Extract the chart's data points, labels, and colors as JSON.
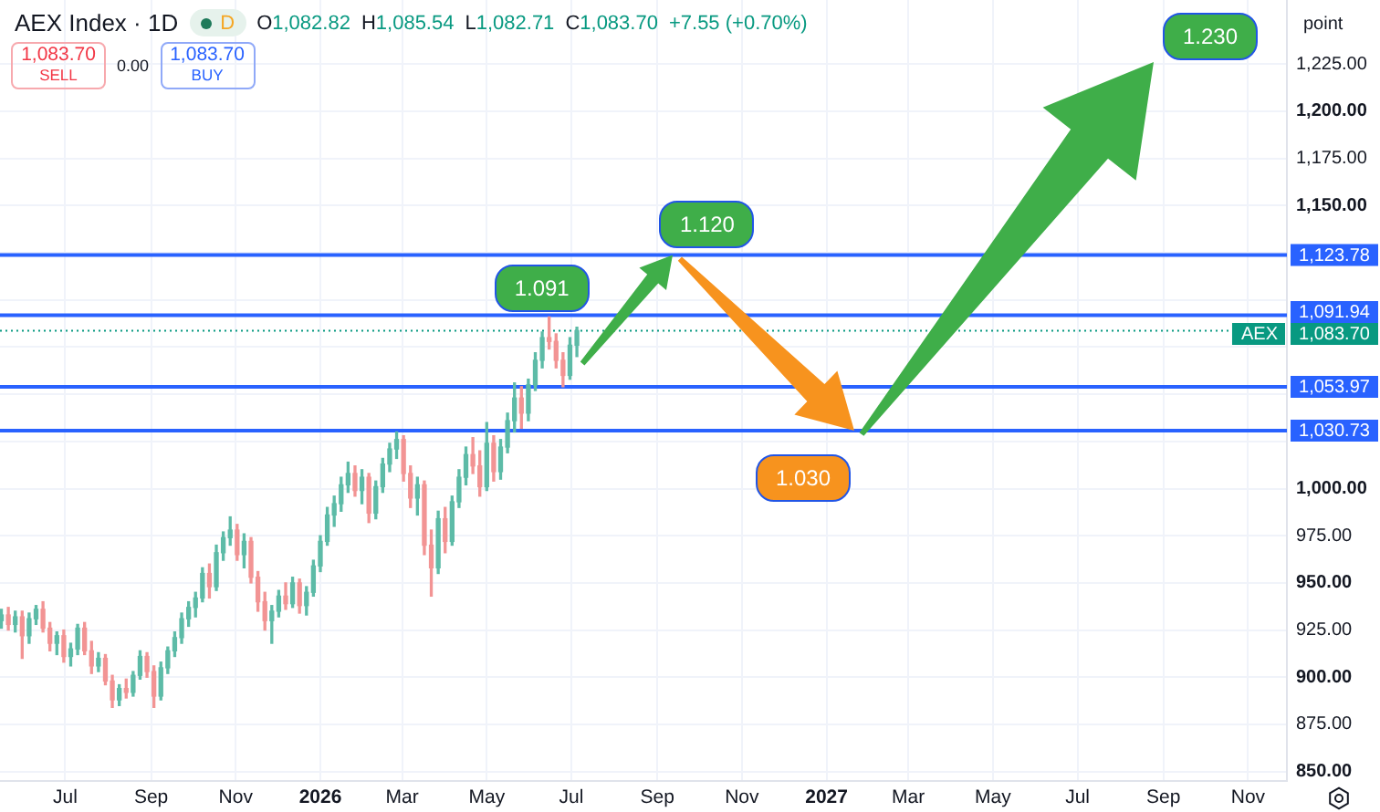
{
  "chart_data": {
    "type": "candlestick",
    "title": "AEX Index · 1D",
    "ylabel": "point",
    "x": [
      "2025-05-16",
      "2025-05-21",
      "2025-05-26",
      "2025-05-31",
      "2025-06-05",
      "2025-06-10",
      "2025-06-15",
      "2025-06-20",
      "2025-06-25",
      "2025-06-30",
      "2025-07-05",
      "2025-07-10",
      "2025-07-15",
      "2025-07-20",
      "2025-07-25",
      "2025-07-30",
      "2025-08-04",
      "2025-08-09",
      "2025-08-14",
      "2025-08-19",
      "2025-08-24",
      "2025-08-29",
      "2025-09-03",
      "2025-09-08",
      "2025-09-13",
      "2025-09-18",
      "2025-09-23",
      "2025-09-28",
      "2025-10-03",
      "2025-10-08",
      "2025-10-13",
      "2025-10-18",
      "2025-10-23",
      "2025-10-28",
      "2025-11-02",
      "2025-11-07",
      "2025-11-12",
      "2025-11-17",
      "2025-11-22",
      "2025-11-27",
      "2025-12-02",
      "2025-12-07",
      "2025-12-12",
      "2025-12-17",
      "2025-12-22",
      "2025-12-27",
      "2026-01-01",
      "2026-01-06",
      "2026-01-11",
      "2026-01-16",
      "2026-01-21",
      "2026-01-26",
      "2026-01-31",
      "2026-02-05",
      "2026-02-10",
      "2026-02-15",
      "2026-02-20",
      "2026-02-25",
      "2026-03-02",
      "2026-03-07",
      "2026-03-12",
      "2026-03-17",
      "2026-03-22",
      "2026-03-27",
      "2026-04-01",
      "2026-04-06",
      "2026-04-11",
      "2026-04-16",
      "2026-04-21",
      "2026-04-26",
      "2026-05-01",
      "2026-05-06",
      "2026-05-11",
      "2026-05-16",
      "2026-05-21",
      "2026-05-26",
      "2026-05-31",
      "2026-06-05",
      "2026-06-10",
      "2026-06-15",
      "2026-06-20",
      "2026-06-25",
      "2026-06-30",
      "2026-07-05"
    ],
    "ohlc": [
      [
        930,
        936,
        926,
        933
      ],
      [
        933,
        937,
        925,
        928
      ],
      [
        928,
        935,
        924,
        932
      ],
      [
        932,
        935,
        910,
        922
      ],
      [
        922,
        934,
        918,
        931
      ],
      [
        931,
        938,
        928,
        936
      ],
      [
        936,
        940,
        924,
        926
      ],
      [
        926,
        929,
        914,
        918
      ],
      [
        918,
        924,
        912,
        922
      ],
      [
        922,
        925,
        908,
        911
      ],
      [
        911,
        918,
        906,
        915
      ],
      [
        915,
        928,
        912,
        926
      ],
      [
        926,
        929,
        912,
        914
      ],
      [
        914,
        919,
        902,
        906
      ],
      [
        906,
        913,
        903,
        910
      ],
      [
        910,
        912,
        896,
        898
      ],
      [
        898,
        901,
        884,
        888
      ],
      [
        888,
        896,
        885,
        894
      ],
      [
        894,
        899,
        889,
        892
      ],
      [
        892,
        903,
        890,
        901
      ],
      [
        901,
        914,
        899,
        911
      ],
      [
        911,
        913,
        900,
        903
      ],
      [
        903,
        906,
        884,
        890
      ],
      [
        890,
        908,
        888,
        905
      ],
      [
        905,
        916,
        902,
        914
      ],
      [
        914,
        924,
        911,
        921
      ],
      [
        921,
        934,
        918,
        931
      ],
      [
        931,
        940,
        927,
        937
      ],
      [
        937,
        945,
        932,
        942
      ],
      [
        942,
        958,
        940,
        955
      ],
      [
        955,
        960,
        942,
        948
      ],
      [
        948,
        970,
        946,
        966
      ],
      [
        966,
        977,
        962,
        974
      ],
      [
        974,
        985,
        970,
        978
      ],
      [
        978,
        981,
        962,
        965
      ],
      [
        965,
        976,
        958,
        972
      ],
      [
        972,
        974,
        950,
        953
      ],
      [
        953,
        956,
        935,
        940
      ],
      [
        940,
        945,
        925,
        930
      ],
      [
        930,
        938,
        918,
        935
      ],
      [
        935,
        946,
        932,
        943
      ],
      [
        943,
        950,
        936,
        939
      ],
      [
        939,
        953,
        937,
        950
      ],
      [
        950,
        952,
        934,
        938
      ],
      [
        938,
        948,
        933,
        945
      ],
      [
        945,
        962,
        943,
        959
      ],
      [
        959,
        975,
        956,
        972
      ],
      [
        972,
        990,
        970,
        986
      ],
      [
        986,
        996,
        980,
        992
      ],
      [
        992,
        1006,
        988,
        1002
      ],
      [
        1002,
        1014,
        998,
        1008
      ],
      [
        1008,
        1012,
        996,
        999
      ],
      [
        999,
        1010,
        992,
        1006
      ],
      [
        1006,
        1008,
        982,
        987
      ],
      [
        987,
        1004,
        984,
        1001
      ],
      [
        1001,
        1016,
        998,
        1013
      ],
      [
        1013,
        1024,
        1009,
        1021
      ],
      [
        1021,
        1030,
        1016,
        1026
      ],
      [
        1026,
        1028,
        1004,
        1008
      ],
      [
        1008,
        1012,
        990,
        995
      ],
      [
        995,
        1006,
        986,
        1002
      ],
      [
        1002,
        1004,
        965,
        970
      ],
      [
        970,
        978,
        943,
        958
      ],
      [
        958,
        988,
        955,
        984
      ],
      [
        984,
        990,
        966,
        972
      ],
      [
        972,
        996,
        970,
        993
      ],
      [
        993,
        1010,
        990,
        1006
      ],
      [
        1006,
        1022,
        1002,
        1018
      ],
      [
        1018,
        1027,
        1008,
        1012
      ],
      [
        1012,
        1020,
        996,
        1001
      ],
      [
        1001,
        1035,
        999,
        1024
      ],
      [
        1024,
        1028,
        1004,
        1009
      ],
      [
        1009,
        1026,
        1005,
        1022
      ],
      [
        1022,
        1040,
        1019,
        1036
      ],
      [
        1036,
        1056,
        1030,
        1048
      ],
      [
        1048,
        1054,
        1032,
        1040
      ],
      [
        1040,
        1058,
        1036,
        1055
      ],
      [
        1055,
        1072,
        1052,
        1068
      ],
      [
        1068,
        1083,
        1064,
        1080
      ],
      [
        1080,
        1091,
        1074,
        1078
      ],
      [
        1078,
        1082,
        1064,
        1068
      ],
      [
        1068,
        1072,
        1054,
        1060
      ],
      [
        1060,
        1080,
        1058,
        1076
      ],
      [
        1076,
        1085.54,
        1070,
        1083.7
      ]
    ],
    "colors": [
      "#5dbba7",
      "#f29494",
      "#5dbba7",
      "#f29494",
      "#5dbba7",
      "#5dbba7",
      "#f29494",
      "#f29494",
      "#5dbba7",
      "#f29494",
      "#5dbba7",
      "#5dbba7",
      "#f29494",
      "#f29494",
      "#5dbba7",
      "#f29494",
      "#f29494",
      "#5dbba7",
      "#f29494",
      "#5dbba7",
      "#5dbba7",
      "#f29494",
      "#f29494",
      "#5dbba7",
      "#5dbba7",
      "#5dbba7",
      "#5dbba7",
      "#5dbba7",
      "#5dbba7",
      "#5dbba7",
      "#f29494",
      "#5dbba7",
      "#5dbba7",
      "#5dbba7",
      "#f29494",
      "#5dbba7",
      "#f29494",
      "#f29494",
      "#f29494",
      "#5dbba7",
      "#5dbba7",
      "#f29494",
      "#5dbba7",
      "#f29494",
      "#5dbba7",
      "#5dbba7",
      "#5dbba7",
      "#5dbba7",
      "#5dbba7",
      "#5dbba7",
      "#5dbba7",
      "#f29494",
      "#5dbba7",
      "#f29494",
      "#5dbba7",
      "#5dbba7",
      "#5dbba7",
      "#5dbba7",
      "#f29494",
      "#f29494",
      "#5dbba7",
      "#f29494",
      "#f29494",
      "#5dbba7",
      "#f29494",
      "#5dbba7",
      "#5dbba7",
      "#5dbba7",
      "#f29494",
      "#f29494",
      "#5dbba7",
      "#f29494",
      "#5dbba7",
      "#5dbba7",
      "#5dbba7",
      "#f29494",
      "#5dbba7",
      "#5dbba7",
      "#5dbba7",
      "#f29494",
      "#f29494",
      "#f29494",
      "#5dbba7",
      "#5dbba7"
    ],
    "xlim": [
      "2025-05-15",
      "2027-11-29"
    ],
    "xticks": [
      {
        "value": "2025-07-01",
        "label": "Jul"
      },
      {
        "value": "2025-09-01",
        "label": "Sep"
      },
      {
        "value": "2025-11-01",
        "label": "Nov"
      },
      {
        "value": "2026-01-01",
        "label": "2026"
      },
      {
        "value": "2026-03-01",
        "label": "Mar"
      },
      {
        "value": "2026-05-01",
        "label": "May"
      },
      {
        "value": "2026-07-01",
        "label": "Jul"
      },
      {
        "value": "2026-09-01",
        "label": "Sep"
      },
      {
        "value": "2026-11-01",
        "label": "Nov"
      },
      {
        "value": "2027-01-01",
        "label": "2027"
      },
      {
        "value": "2027-03-01",
        "label": "Mar"
      },
      {
        "value": "2027-05-01",
        "label": "May"
      },
      {
        "value": "2027-07-01",
        "label": "Jul"
      },
      {
        "value": "2027-09-01",
        "label": "Sep"
      },
      {
        "value": "2027-11-01",
        "label": "Nov"
      }
    ],
    "ylim": [
      845,
      1259
    ],
    "yticks": [
      {
        "value": 850,
        "label": "850.00"
      },
      {
        "value": 875,
        "label": "875.00"
      },
      {
        "value": 900,
        "label": "900.00"
      },
      {
        "value": 925,
        "label": "925.00"
      },
      {
        "value": 950,
        "label": "950.00"
      },
      {
        "value": 975,
        "label": "975.00"
      },
      {
        "value": 1000,
        "label": "1,000.00"
      },
      {
        "value": 1025,
        "label": null
      },
      {
        "value": 1050,
        "label": null
      },
      {
        "value": 1075,
        "label": null
      },
      {
        "value": 1100,
        "label": null
      },
      {
        "value": 1125,
        "label": null
      },
      {
        "value": 1150,
        "label": "1,150.00"
      },
      {
        "value": 1175,
        "label": "1,175.00"
      },
      {
        "value": 1200,
        "label": "1,200.00"
      },
      {
        "value": 1225,
        "label": "1,225.00"
      }
    ],
    "grid": true,
    "ref_lines": [
      {
        "axis": "y",
        "value": 1123.78,
        "label": "1,123.78",
        "color": "#2962ff"
      },
      {
        "axis": "y",
        "value": 1091.94,
        "label": "1,091.94",
        "color": "#2962ff"
      },
      {
        "axis": "y",
        "value": 1083.7,
        "label": "1,083.70",
        "color": "#089981",
        "line_style": "dotted"
      },
      {
        "axis": "y",
        "value": 1053.97,
        "label": "1,053.97",
        "color": "#2962ff"
      },
      {
        "axis": "y",
        "value": 1030.73,
        "label": "1,030.73",
        "color": "#2962ff"
      }
    ],
    "annotations": [
      "D",
      "O1,082.82",
      "H1,085.54",
      "L1,082.71",
      "C1,083.70",
      "+7.55 (+0.70%)",
      "1,083.70",
      "SELL",
      "0.00",
      "1,083.70",
      "BUY",
      {
        "text": "1.091",
        "x": "2026-06-15",
        "y": 1091.94
      },
      {
        "text": "1.120",
        "x": "2026-09-12",
        "y": 1123.78
      },
      {
        "text": "1.030",
        "x": "2027-01-21",
        "y": 1030.73
      },
      "1.230",
      {
        "text": "AEX",
        "y": 1083.7
      }
    ]
  }
}
